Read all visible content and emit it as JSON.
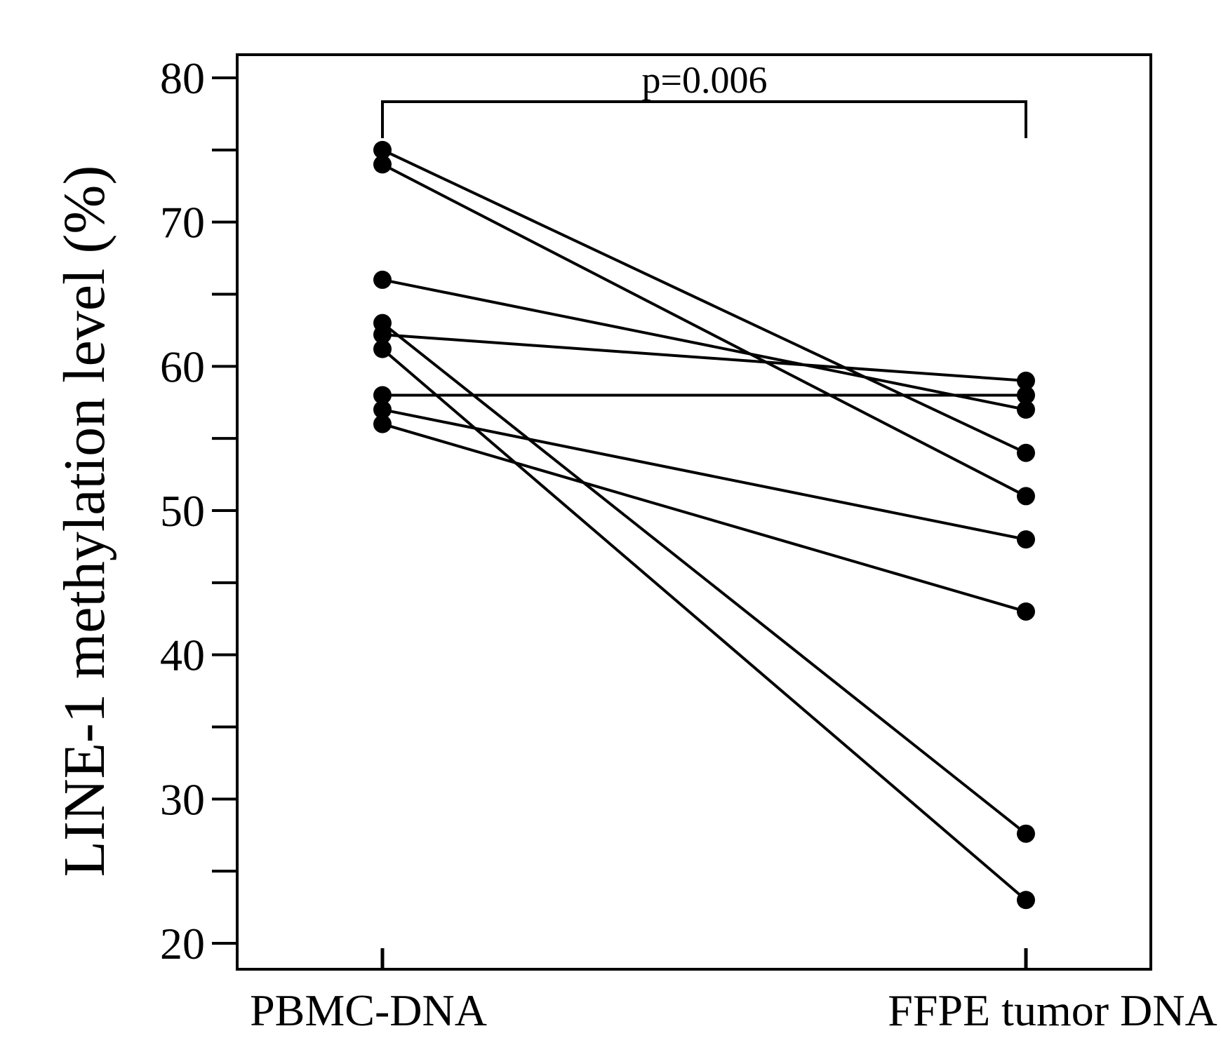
{
  "chart_data": {
    "type": "line",
    "categories": [
      "PBMC-DNA",
      "FFPE tumor DNA"
    ],
    "ylabel": "LINE-1 methylation level (%)",
    "xlabel": "",
    "title": "",
    "ylim": [
      20,
      80
    ],
    "yticks": [
      20,
      30,
      40,
      50,
      60,
      70,
      80
    ],
    "minor_yticks": [
      25,
      35,
      45,
      55,
      65,
      75
    ],
    "yticks_labels": [
      "20",
      "30",
      "40",
      "50",
      "60",
      "70",
      "80"
    ],
    "grid": false,
    "annotation": {
      "text": "p=0.006",
      "type": "bracket",
      "between": [
        "PBMC-DNA",
        "FFPE tumor DNA"
      ],
      "y": 78
    },
    "pairs": [
      {
        "values": [
          75,
          54
        ]
      },
      {
        "values": [
          74,
          51
        ]
      },
      {
        "values": [
          66,
          57
        ]
      },
      {
        "values": [
          62.2,
          59
        ]
      },
      {
        "values": [
          63,
          27.6
        ]
      },
      {
        "values": [
          61.2,
          23
        ]
      },
      {
        "values": [
          58,
          58
        ]
      },
      {
        "values": [
          57,
          48
        ]
      },
      {
        "values": [
          56,
          43
        ]
      }
    ],
    "line_color": "#000000",
    "marker_color": "#000000"
  }
}
